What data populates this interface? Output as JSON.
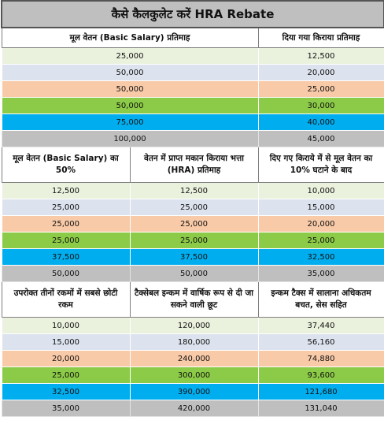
{
  "title": "कैसे कैलकुलेट करें HRA Rebate",
  "section1": {
    "headers": [
      "मूल वेतन (Basic Salary) प्रतिमाह",
      "दिया गया किराया प्रतिमाह"
    ],
    "rows": [
      [
        "25,000",
        "12,500"
      ],
      [
        "50,000",
        "20,000"
      ],
      [
        "50,000",
        "25,000"
      ],
      [
        "50,000",
        "30,000"
      ],
      [
        "75,000",
        "40,000"
      ],
      [
        "100,000",
        "45,000"
      ]
    ]
  },
  "section2": {
    "headers": [
      "मूल वेतन (Basic Salary) का 50%",
      "वेतन में प्राप्त मकान किराया भत्ता (HRA) प्रतिमाह",
      "दिए गए किराये में से मूल वेतन का 10% घटाने के बाद"
    ],
    "rows": [
      [
        "12,500",
        "12,500",
        "10,000"
      ],
      [
        "25,000",
        "25,000",
        "15,000"
      ],
      [
        "25,000",
        "25,000",
        "20,000"
      ],
      [
        "25,000",
        "25,000",
        "25,000"
      ],
      [
        "37,500",
        "37,500",
        "32,500"
      ],
      [
        "50,000",
        "50,000",
        "35,000"
      ]
    ]
  },
  "section3": {
    "headers": [
      "उपरोक्त तीनों रकमों में सबसे छोटी रकम",
      "टैक्सेबल इन्कम में वार्षिक रूप से दी जा सकने वाली छूट",
      "इन्कम टैक्स में सालाना अधिकतम बचत, सेस सहित"
    ],
    "rows": [
      [
        "10,000",
        "120,000",
        "37,440"
      ],
      [
        "15,000",
        "180,000",
        "56,160"
      ],
      [
        "20,000",
        "240,000",
        "74,880"
      ],
      [
        "25,000",
        "300,000",
        "93,600"
      ],
      [
        "32,500",
        "390,000",
        "121,680"
      ],
      [
        "35,000",
        "420,000",
        "131,040"
      ]
    ]
  },
  "row_colors": [
    "#eaf1dd",
    "#dde3ee",
    "#f9caa8",
    "#8ccb47",
    "#00aeef",
    "#bfbfbf"
  ]
}
